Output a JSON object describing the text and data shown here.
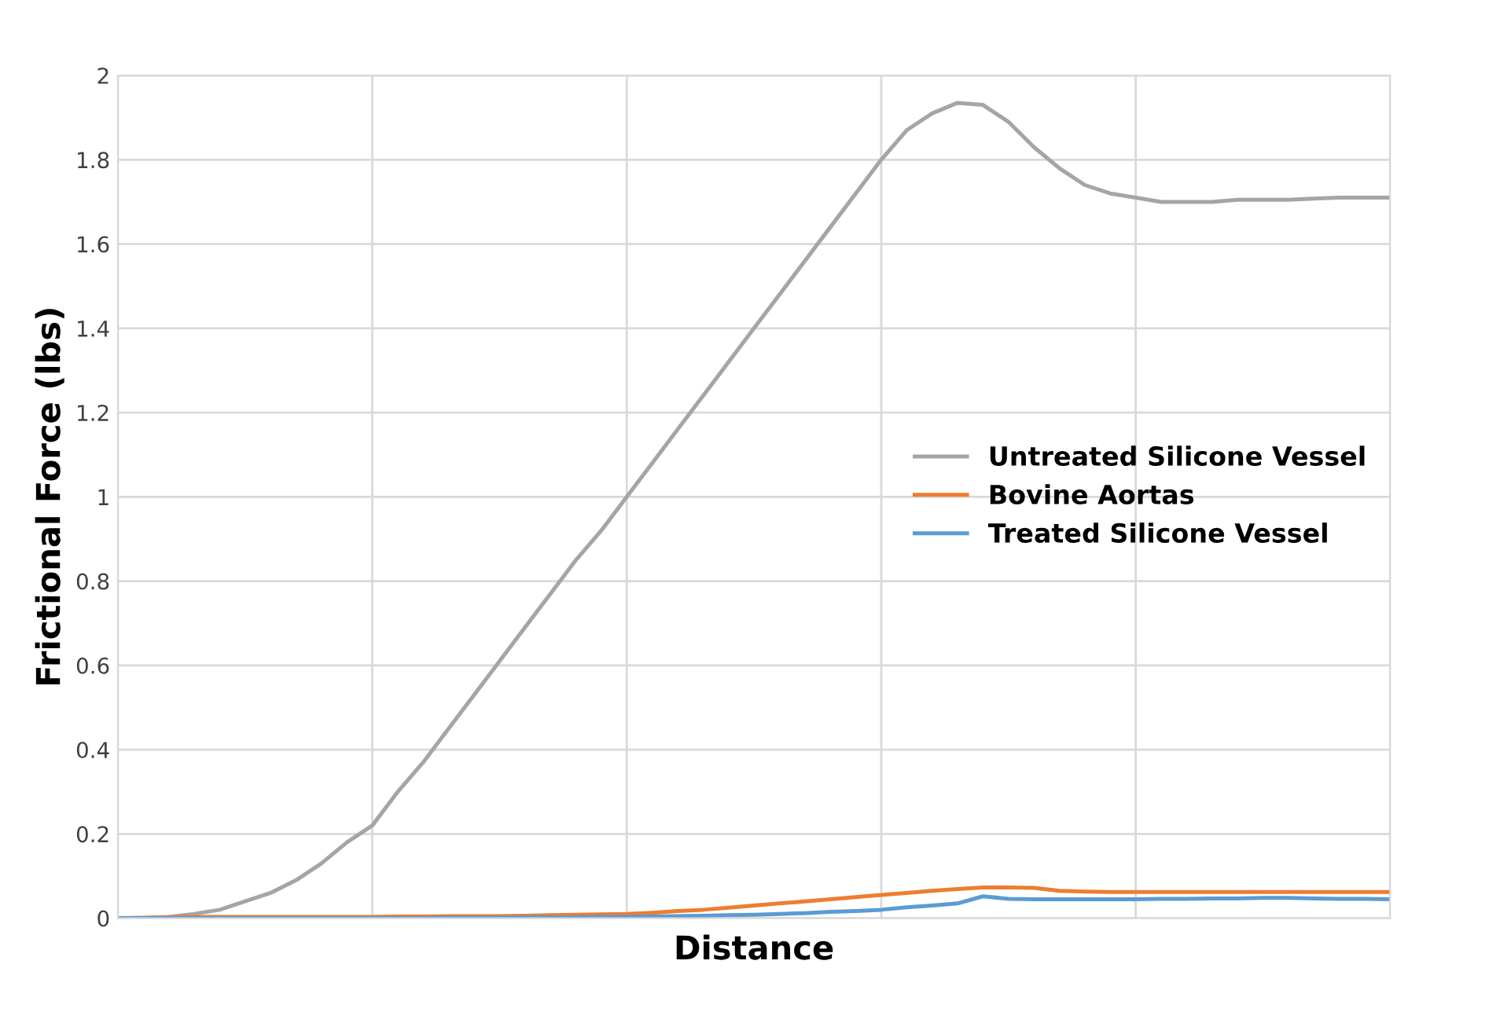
{
  "chart_data": {
    "type": "line",
    "xlabel": "Distance",
    "ylabel": "Frictional Force (lbs)",
    "categories": [
      null,
      null,
      null,
      null,
      null,
      null,
      null,
      null,
      null,
      null,
      null,
      null,
      null,
      null,
      null,
      null,
      null,
      null,
      null,
      null,
      null,
      null,
      null,
      null,
      null,
      null,
      null,
      null,
      null,
      null,
      null,
      null,
      null,
      null,
      null,
      null,
      null,
      null,
      null,
      null,
      null,
      null,
      null,
      null,
      null,
      null,
      null,
      null,
      null,
      null,
      null
    ],
    "ylim": [
      0,
      2
    ],
    "yticks": [
      0,
      0.2,
      0.4,
      0.6,
      0.8,
      1,
      1.2,
      1.4,
      1.6,
      1.8,
      2
    ],
    "tick_labels": "y",
    "grid": true,
    "legend": "right",
    "marker": "none",
    "line_style": "solid",
    "series": [
      {
        "name": "Untreated Silicone Vessel",
        "color": "#a5a5a5",
        "values": [
          0,
          0,
          0.003,
          0.01,
          0.02,
          0.04,
          0.06,
          0.09,
          0.13,
          0.18,
          0.22,
          0.3,
          0.37,
          0.45,
          0.53,
          0.61,
          0.69,
          0.77,
          0.85,
          0.92,
          1.0,
          1.08,
          1.16,
          1.24,
          1.32,
          1.4,
          1.48,
          1.56,
          1.64,
          1.72,
          1.8,
          1.87,
          1.91,
          1.935,
          1.93,
          1.89,
          1.83,
          1.78,
          1.74,
          1.72,
          1.71,
          1.7,
          1.7,
          1.7,
          1.705,
          1.705,
          1.705,
          1.708,
          1.71,
          1.71,
          1.71
        ]
      },
      {
        "name": "Bovine Aortas",
        "color": "#ed7d31",
        "values": [
          0,
          0.001,
          0.002,
          0.003,
          0.003,
          0.003,
          0.003,
          0.003,
          0.003,
          0.003,
          0.003,
          0.004,
          0.004,
          0.005,
          0.005,
          0.005,
          0.006,
          0.007,
          0.008,
          0.009,
          0.01,
          0.013,
          0.017,
          0.02,
          0.025,
          0.03,
          0.035,
          0.04,
          0.045,
          0.05,
          0.055,
          0.06,
          0.065,
          0.069,
          0.073,
          0.073,
          0.072,
          0.065,
          0.063,
          0.062,
          0.062,
          0.062,
          0.062,
          0.062,
          0.062,
          0.062,
          0.062,
          0.062,
          0.062,
          0.062,
          0.062
        ]
      },
      {
        "name": "Treated Silicone Vessel",
        "color": "#5b9bd5",
        "values": [
          0,
          0,
          0,
          0,
          0,
          0,
          0,
          0,
          0,
          0,
          0,
          0,
          0,
          0.001,
          0.001,
          0.001,
          0.002,
          0.002,
          0.002,
          0.003,
          0.003,
          0.004,
          0.005,
          0.006,
          0.007,
          0.008,
          0.01,
          0.012,
          0.015,
          0.017,
          0.02,
          0.026,
          0.03,
          0.035,
          0.052,
          0.046,
          0.045,
          0.045,
          0.045,
          0.045,
          0.045,
          0.046,
          0.046,
          0.047,
          0.047,
          0.048,
          0.048,
          0.047,
          0.046,
          0.046,
          0.045
        ]
      }
    ]
  }
}
